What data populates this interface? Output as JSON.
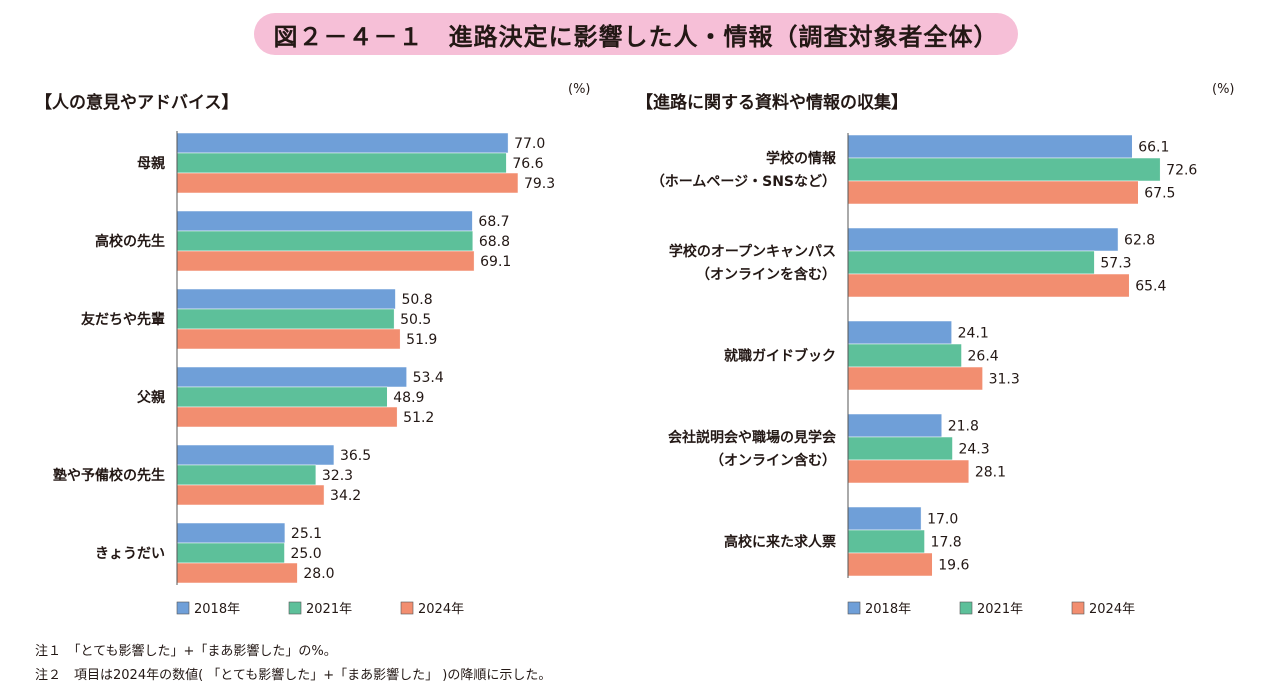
{
  "title": "図２－４－１　進路決定に影響した人・情報（調査対象者全体）",
  "chart_data": [
    {
      "type": "bar",
      "orientation": "horizontal",
      "title": "【人の意見やアドバイス】",
      "unit": "(%)",
      "xlim": [
        0,
        100
      ],
      "categories": [
        "母親",
        "高校の先生",
        "友だちや先輩",
        "父親",
        "塾や予備校の先生",
        "きょうだい"
      ],
      "series": [
        {
          "name": "2018年",
          "values": [
            77.0,
            68.7,
            50.8,
            53.4,
            36.5,
            25.1
          ]
        },
        {
          "name": "2021年",
          "values": [
            76.6,
            68.8,
            50.5,
            48.9,
            32.3,
            25.0
          ]
        },
        {
          "name": "2024年",
          "values": [
            79.3,
            69.1,
            51.9,
            51.2,
            34.2,
            28.0
          ]
        }
      ]
    },
    {
      "type": "bar",
      "orientation": "horizontal",
      "title": "【進路に関する資料や情報の収集】",
      "unit": "(%)",
      "xlim": [
        0,
        100
      ],
      "categories": [
        [
          "学校の情報",
          "（ホームページ・SNSなど）"
        ],
        [
          "学校のオープンキャンパス",
          "（オンラインを含む）"
        ],
        [
          "就職ガイドブック"
        ],
        [
          "会社説明会や職場の見学会",
          "（オンライン含む）"
        ],
        [
          "高校に来た求人票"
        ]
      ],
      "series": [
        {
          "name": "2018年",
          "values": [
            66.1,
            62.8,
            24.1,
            21.8,
            17.0
          ]
        },
        {
          "name": "2021年",
          "values": [
            72.6,
            57.3,
            26.4,
            24.3,
            17.8
          ]
        },
        {
          "name": "2024年",
          "values": [
            67.5,
            65.4,
            31.3,
            28.1,
            19.6
          ]
        }
      ]
    }
  ],
  "colors": {
    "2018年": "#6f9fd8",
    "2021年": "#5dc09a",
    "2024年": "#f28e70",
    "title_bg": "#f6bfd7"
  },
  "notes": [
    "注１　「とても影響した」+「まあ影響した」の%。",
    "注２　項目は2024年の数値( 「とても影響した」+「まあ影響した」 )の降順に示した。"
  ]
}
